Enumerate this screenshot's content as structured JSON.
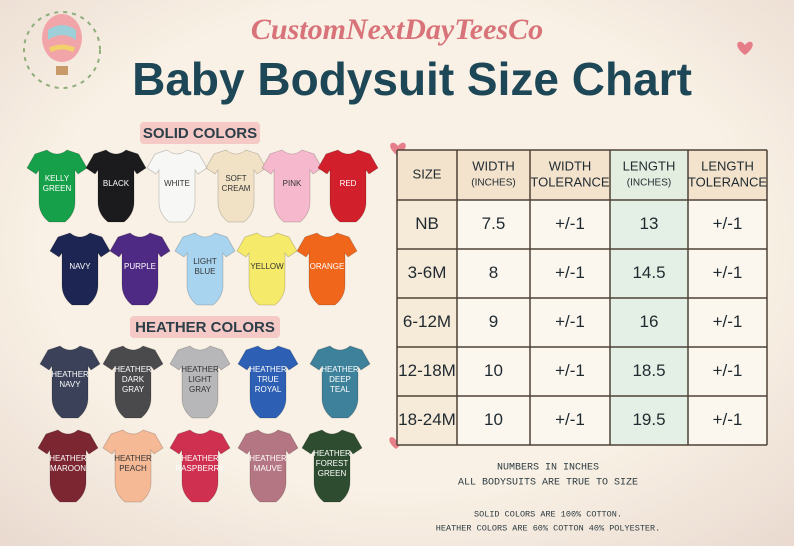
{
  "header": {
    "brand": "CustomNextDayTeesCo",
    "title": "Baby Bodysuit Size Chart"
  },
  "solid": {
    "heading": "SOLID COLORS",
    "items": [
      {
        "label": [
          "KELLY",
          "GREEN"
        ],
        "color": "#16a04a"
      },
      {
        "label": [
          "BLACK"
        ],
        "color": "#1b1b1d"
      },
      {
        "label": [
          "WHITE"
        ],
        "color": "#f7f7f5"
      },
      {
        "label": [
          "SOFT",
          "CREAM"
        ],
        "color": "#f1e2c6"
      },
      {
        "label": [
          "PINK"
        ],
        "color": "#f6b8cc"
      },
      {
        "label": [
          "RED"
        ],
        "color": "#d11f2b"
      },
      {
        "label": [
          "NAVY"
        ],
        "color": "#1d2552"
      },
      {
        "label": [
          "PURPLE"
        ],
        "color": "#4f2a84"
      },
      {
        "label": [
          "LIGHT",
          "BLUE"
        ],
        "color": "#a9d4f0"
      },
      {
        "label": [
          "YELLOW"
        ],
        "color": "#f6ea6b"
      },
      {
        "label": [
          "ORANGE"
        ],
        "color": "#f0671c"
      }
    ]
  },
  "heather": {
    "heading": "HEATHER COLORS",
    "items": [
      {
        "label": [
          "HEATHER",
          "NAVY"
        ],
        "color": "#3a4158"
      },
      {
        "label": [
          "HEATHER",
          "DARK",
          "GRAY"
        ],
        "color": "#4a4a4d"
      },
      {
        "label": [
          "HEATHER",
          "LIGHT",
          "GRAY"
        ],
        "color": "#b7b6b8"
      },
      {
        "label": [
          "HEATHER",
          "TRUE",
          "ROYAL"
        ],
        "color": "#2d5fb4"
      },
      {
        "label": [
          "HEATHER",
          "DEEP",
          "TEAL"
        ],
        "color": "#3d819a"
      },
      {
        "label": [
          "HEATHER",
          "MAROON"
        ],
        "color": "#7c2632"
      },
      {
        "label": [
          "HEATHER",
          "PEACH"
        ],
        "color": "#f6b995"
      },
      {
        "label": [
          "HEATHER",
          "RASPBERRY"
        ],
        "color": "#d0304f"
      },
      {
        "label": [
          "HEATHER",
          "MAUVE"
        ],
        "color": "#b57683"
      },
      {
        "label": [
          "HEATHER",
          "FOREST",
          "GREEN"
        ],
        "color": "#2e4d30"
      }
    ]
  },
  "table": {
    "headers": [
      [
        "SIZE"
      ],
      [
        "WIDTH",
        "(INCHES)"
      ],
      [
        "WIDTH",
        "TOLERANCE"
      ],
      [
        "LENGTH",
        "(INCHES)"
      ],
      [
        "LENGTH",
        "TOLERANCE"
      ]
    ],
    "rows": [
      [
        "NB",
        "7.5",
        "+/-1",
        "13",
        "+/-1"
      ],
      [
        "3-6M",
        "8",
        "+/-1",
        "14.5",
        "+/-1"
      ],
      [
        "6-12M",
        "9",
        "+/-1",
        "16",
        "+/-1"
      ],
      [
        "12-18M",
        "10",
        "+/-1",
        "18.5",
        "+/-1"
      ],
      [
        "18-24M",
        "10",
        "+/-1",
        "19.5",
        "+/-1"
      ]
    ]
  },
  "notes": [
    "NUMBERS IN INCHES",
    "ALL BODYSUITS ARE TRUE TO SIZE"
  ],
  "footer": [
    "SOLID COLORS ARE 100% COTTON.",
    "HEATHER COLORS ARE 60% COTTON 40% POLYESTER."
  ]
}
